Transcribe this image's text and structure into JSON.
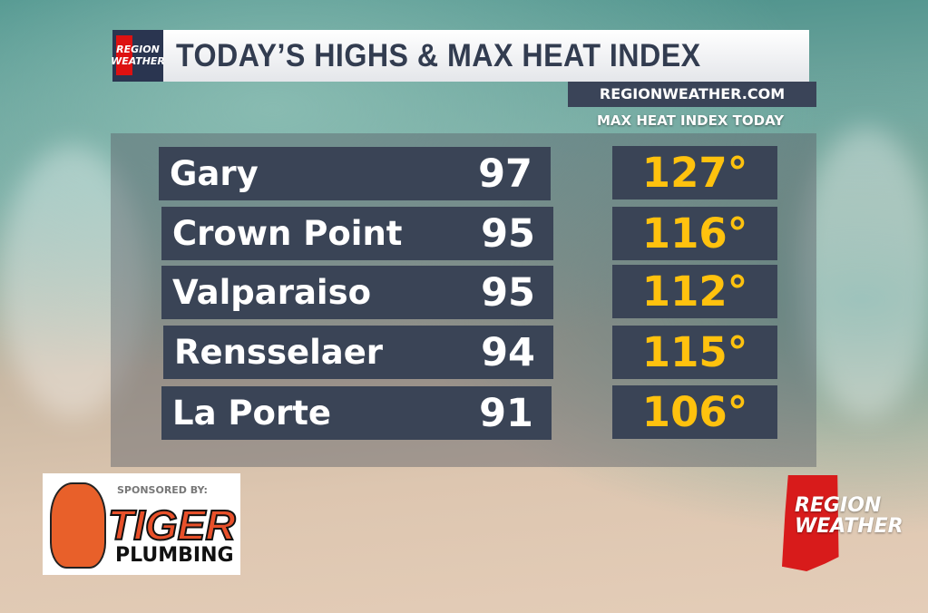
{
  "header": {
    "title": "TODAY’S HIGHS & MAX HEAT INDEX",
    "website": "REGIONWEATHER.COM",
    "heat_index_label": "MAX HEAT INDEX TODAY",
    "logo_text": [
      "REGION",
      "WEATHER"
    ]
  },
  "rows": [
    {
      "city": "Gary",
      "high": "97",
      "heat_index": "127°"
    },
    {
      "city": "Crown Point",
      "high": "95",
      "heat_index": "116°"
    },
    {
      "city": "Valparaiso",
      "high": "95",
      "heat_index": "112°"
    },
    {
      "city": "Rensselaer",
      "high": "94",
      "heat_index": "115°"
    },
    {
      "city": "La Porte",
      "high": "91",
      "heat_index": "106°"
    }
  ],
  "sponsor": {
    "label": "SPONSORED BY:",
    "name1": "TIGER",
    "name2": "PLUMBING"
  },
  "brand": {
    "line1": "REGION",
    "line2": "WEATHER"
  },
  "colors": {
    "heat_index": "#ffc20e",
    "row_bg": "#3a4456",
    "brand_red": "#d81b1b"
  }
}
